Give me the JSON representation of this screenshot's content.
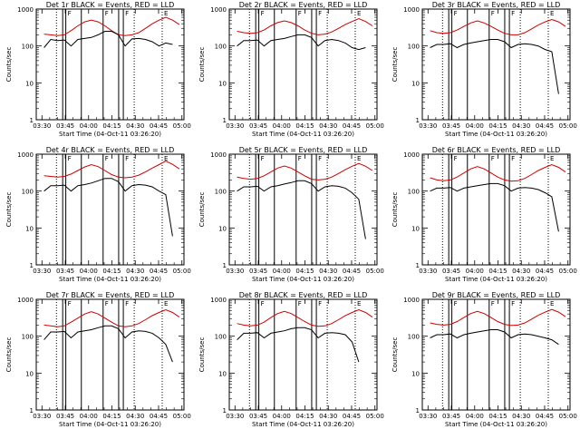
{
  "figure": {
    "xlabel": "Start Time (04-Oct-11 03:26:20)",
    "ylabel": "Counts/sec"
  },
  "chart_data": [
    {
      "type": "line",
      "title": "Det 1r BLACK = Events, RED = LLD",
      "xlabel": "Start Time (04-Oct-11 03:26:20)",
      "ylabel": "Counts/sec",
      "x_ticks": [
        "03:30",
        "03:45",
        "04:00",
        "04:15",
        "04:30",
        "04:45",
        "05:00"
      ],
      "y_ticks": [
        "1",
        "10",
        "100",
        "1000"
      ],
      "y_scale": "log",
      "ylim": [
        1,
        1000
      ],
      "xlim_minutes": [
        0,
        95
      ],
      "red_values": [
        210,
        200,
        190,
        200,
        260,
        350,
        450,
        500,
        450,
        350,
        260,
        200,
        190,
        200,
        230,
        300,
        400,
        500,
        600,
        500,
        380
      ],
      "black_values": [
        90,
        150,
        140,
        145,
        100,
        150,
        160,
        170,
        200,
        250,
        250,
        200,
        100,
        155,
        160,
        150,
        130,
        100,
        120,
        110,
        null
      ],
      "solid_lines": [
        17,
        19,
        29,
        43,
        53,
        56
      ],
      "dotted_lines": [
        13,
        63,
        81
      ],
      "segment_marks": [
        "F",
        "F",
        "F",
        "E"
      ]
    },
    {
      "type": "line",
      "title": "Det 2r BLACK = Events, RED = LLD",
      "xlabel": "Start Time (04-Oct-11 03:26:20)",
      "ylabel": "Counts/sec",
      "x_ticks": [
        "03:30",
        "03:45",
        "04:00",
        "04:15",
        "04:30",
        "04:45",
        "05:00"
      ],
      "y_ticks": [
        "1",
        "10",
        "100",
        "1000"
      ],
      "y_scale": "log",
      "ylim": [
        1,
        1000
      ],
      "xlim_minutes": [
        0,
        95
      ],
      "red_values": [
        250,
        230,
        220,
        230,
        270,
        350,
        430,
        480,
        430,
        350,
        270,
        220,
        200,
        210,
        240,
        300,
        380,
        460,
        550,
        460,
        350
      ],
      "black_values": [
        100,
        140,
        140,
        145,
        100,
        140,
        150,
        160,
        180,
        200,
        200,
        170,
        100,
        140,
        150,
        140,
        120,
        90,
        80,
        90,
        null
      ],
      "solid_lines": [
        17,
        19,
        29,
        43,
        53,
        56
      ],
      "dotted_lines": [
        13,
        63,
        81
      ],
      "segment_marks": [
        "F",
        "F",
        "F",
        "E"
      ]
    },
    {
      "type": "line",
      "title": "Det 3r BLACK = Events, RED = LLD",
      "xlabel": "Start Time (04-Oct-11 03:26:20)",
      "ylabel": "Counts/sec",
      "x_ticks": [
        "03:30",
        "03:45",
        "04:00",
        "04:15",
        "04:30",
        "04:45",
        "05:00"
      ],
      "y_ticks": [
        "1",
        "10",
        "100",
        "1000"
      ],
      "y_scale": "log",
      "ylim": [
        1,
        1000
      ],
      "xlim_minutes": [
        0,
        95
      ],
      "red_values": [
        260,
        230,
        220,
        230,
        270,
        340,
        420,
        480,
        420,
        340,
        270,
        220,
        200,
        200,
        230,
        290,
        370,
        450,
        520,
        450,
        340
      ],
      "black_values": [
        90,
        110,
        110,
        115,
        90,
        110,
        120,
        130,
        140,
        150,
        150,
        130,
        90,
        110,
        115,
        110,
        100,
        80,
        70,
        5,
        null
      ],
      "solid_lines": [
        17,
        19,
        29,
        43,
        53,
        56
      ],
      "dotted_lines": [
        13,
        63,
        81
      ],
      "segment_marks": [
        "F",
        "F",
        "F",
        "E"
      ]
    },
    {
      "type": "line",
      "title": "Det 4r BLACK = Events, RED = LLD",
      "xlabel": "Start Time (04-Oct-11 03:26:20)",
      "ylabel": "Counts/sec",
      "x_ticks": [
        "03:30",
        "03:45",
        "04:00",
        "04:15",
        "04:30",
        "04:45",
        "05:00"
      ],
      "y_ticks": [
        "1",
        "10",
        "100",
        "1000"
      ],
      "y_scale": "log",
      "ylim": [
        1,
        1000
      ],
      "xlim_minutes": [
        0,
        95
      ],
      "red_values": [
        260,
        250,
        240,
        250,
        290,
        360,
        450,
        520,
        460,
        360,
        280,
        240,
        230,
        240,
        270,
        330,
        420,
        520,
        650,
        530,
        400
      ],
      "black_values": [
        100,
        140,
        140,
        145,
        100,
        140,
        150,
        165,
        190,
        220,
        220,
        180,
        100,
        140,
        150,
        145,
        130,
        100,
        80,
        6,
        null
      ],
      "solid_lines": [
        17,
        19,
        29,
        43,
        53,
        56
      ],
      "dotted_lines": [
        13,
        63,
        81
      ],
      "segment_marks": [
        "F",
        "F",
        "F",
        "E"
      ]
    },
    {
      "type": "line",
      "title": "Det 5r BLACK = Events, RED = LLD",
      "xlabel": "Start Time (04-Oct-11 03:26:20)",
      "ylabel": "Counts/sec",
      "x_ticks": [
        "03:30",
        "03:45",
        "04:00",
        "04:15",
        "04:30",
        "04:45",
        "05:00"
      ],
      "y_ticks": [
        "1",
        "10",
        "100",
        "1000"
      ],
      "y_scale": "log",
      "ylim": [
        1,
        1000
      ],
      "xlim_minutes": [
        0,
        95
      ],
      "red_values": [
        240,
        220,
        210,
        220,
        260,
        330,
        420,
        480,
        420,
        330,
        260,
        210,
        200,
        210,
        240,
        300,
        380,
        470,
        560,
        470,
        360
      ],
      "black_values": [
        100,
        130,
        130,
        135,
        100,
        130,
        140,
        155,
        170,
        190,
        190,
        160,
        100,
        130,
        140,
        135,
        120,
        90,
        60,
        5,
        null
      ],
      "solid_lines": [
        17,
        19,
        29,
        43,
        53,
        56
      ],
      "dotted_lines": [
        13,
        63,
        81
      ],
      "segment_marks": [
        "F",
        "F",
        "F",
        "E"
      ]
    },
    {
      "type": "line",
      "title": "Det 6r BLACK = Events, RED = LLD",
      "xlabel": "Start Time (04-Oct-11 03:26:20)",
      "ylabel": "Counts/sec",
      "x_ticks": [
        "03:30",
        "03:45",
        "04:00",
        "04:15",
        "04:30",
        "04:45",
        "05:00"
      ],
      "y_ticks": [
        "1",
        "10",
        "100",
        "1000"
      ],
      "y_scale": "log",
      "ylim": [
        1,
        1000
      ],
      "xlim_minutes": [
        0,
        95
      ],
      "red_values": [
        230,
        200,
        190,
        200,
        240,
        310,
        400,
        460,
        400,
        310,
        240,
        200,
        185,
        190,
        220,
        280,
        360,
        440,
        520,
        440,
        330
      ],
      "black_values": [
        100,
        120,
        120,
        125,
        100,
        120,
        130,
        140,
        150,
        160,
        160,
        140,
        100,
        120,
        125,
        120,
        110,
        90,
        70,
        8,
        null
      ],
      "solid_lines": [
        17,
        19,
        29,
        43,
        53,
        56
      ],
      "dotted_lines": [
        13,
        63,
        81
      ],
      "segment_marks": [
        "F",
        "F",
        "F",
        "E"
      ]
    },
    {
      "type": "line",
      "title": "Det 7r BLACK = Events, RED = LLD",
      "xlabel": "Start Time (04-Oct-11 03:26:20)",
      "ylabel": "Counts/sec",
      "x_ticks": [
        "03:30",
        "03:45",
        "04:00",
        "04:15",
        "04:30",
        "04:45",
        "05:00"
      ],
      "y_ticks": [
        "1",
        "10",
        "100",
        "1000"
      ],
      "y_scale": "log",
      "ylim": [
        1,
        1000
      ],
      "xlim_minutes": [
        0,
        95
      ],
      "red_values": [
        200,
        190,
        180,
        190,
        240,
        310,
        400,
        460,
        400,
        310,
        240,
        190,
        180,
        190,
        220,
        280,
        360,
        440,
        520,
        440,
        330
      ],
      "black_values": [
        80,
        130,
        130,
        135,
        90,
        130,
        140,
        150,
        170,
        190,
        190,
        160,
        90,
        130,
        140,
        135,
        120,
        90,
        60,
        20,
        null
      ],
      "solid_lines": [
        17,
        19,
        29,
        43,
        53,
        56
      ],
      "dotted_lines": [
        13,
        63,
        81
      ],
      "segment_marks": [
        "F",
        "F",
        "F",
        "E"
      ]
    },
    {
      "type": "line",
      "title": "Det 8r BLACK = Events, RED = LLD",
      "xlabel": "Start Time (04-Oct-11 03:26:20)",
      "ylabel": "Counts/sec",
      "x_ticks": [
        "03:30",
        "03:45",
        "04:00",
        "04:15",
        "04:30",
        "04:45",
        "05:00"
      ],
      "y_ticks": [
        "1",
        "10",
        "100",
        "1000"
      ],
      "y_scale": "log",
      "ylim": [
        1,
        1000
      ],
      "xlim_minutes": [
        0,
        95
      ],
      "red_values": [
        220,
        200,
        190,
        200,
        240,
        320,
        410,
        470,
        410,
        320,
        250,
        200,
        185,
        190,
        220,
        280,
        360,
        440,
        520,
        440,
        330
      ],
      "black_values": [
        80,
        120,
        120,
        125,
        90,
        120,
        130,
        140,
        160,
        170,
        170,
        150,
        90,
        120,
        125,
        120,
        110,
        70,
        20,
        null,
        null
      ],
      "solid_lines": [
        17,
        19,
        29,
        43,
        53,
        56
      ],
      "dotted_lines": [
        13,
        63,
        81
      ],
      "segment_marks": [
        "F",
        "F",
        "F",
        "E"
      ]
    },
    {
      "type": "line",
      "title": "Det 9r BLACK = Events, RED = LLD",
      "xlabel": "Start Time (04-Oct-11 03:26:20)",
      "ylabel": "Counts/sec",
      "x_ticks": [
        "03:30",
        "03:45",
        "04:00",
        "04:15",
        "04:30",
        "04:45",
        "05:00"
      ],
      "y_ticks": [
        "1",
        "10",
        "100",
        "1000"
      ],
      "y_scale": "log",
      "ylim": [
        1,
        1000
      ],
      "xlim_minutes": [
        0,
        95
      ],
      "red_values": [
        230,
        210,
        200,
        210,
        250,
        320,
        410,
        470,
        410,
        320,
        250,
        210,
        195,
        200,
        230,
        290,
        370,
        450,
        530,
        450,
        340
      ],
      "black_values": [
        90,
        110,
        110,
        115,
        90,
        110,
        120,
        130,
        140,
        150,
        150,
        130,
        90,
        110,
        115,
        110,
        100,
        90,
        80,
        60,
        null
      ],
      "solid_lines": [
        17,
        19,
        29,
        43,
        53,
        56
      ],
      "dotted_lines": [
        13,
        63,
        81
      ],
      "segment_marks": [
        "F",
        "F",
        "F",
        "E"
      ]
    }
  ]
}
